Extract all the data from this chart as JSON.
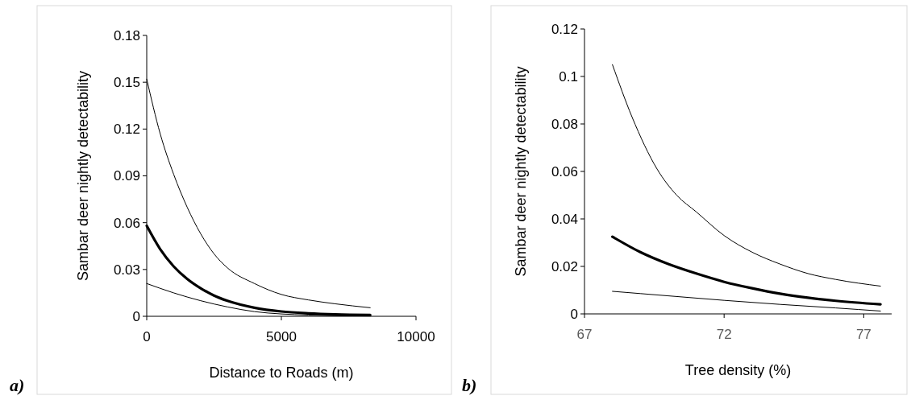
{
  "chart_data": [
    {
      "type": "line",
      "xlabel": "Distance to Roads (m)",
      "ylabel": "Sambar deer nightly detectability",
      "xlim": [
        0,
        10000
      ],
      "xticks": [
        0,
        5000,
        10000
      ],
      "ylim": [
        0,
        0.18
      ],
      "yticks": [
        0,
        0.03,
        0.06,
        0.09,
        0.12,
        0.15,
        0.18
      ],
      "annotations": [
        "a)"
      ],
      "series": [
        {
          "color": "#000000",
          "x": [
            0,
            500,
            1000,
            1500,
            2000,
            2500,
            3000,
            4000,
            5000,
            6000,
            7000,
            8300
          ],
          "values": [
            0.152,
            0.117,
            0.091,
            0.07,
            0.053,
            0.04,
            0.031,
            0.021,
            0.014,
            0.0105,
            0.008,
            0.0055
          ]
        },
        {
          "color": "#000000",
          "x": [
            0,
            500,
            1000,
            1500,
            2000,
            2500,
            3000,
            4000,
            5000,
            6000,
            7000,
            8300
          ],
          "values": [
            0.058,
            0.043,
            0.032,
            0.024,
            0.018,
            0.0133,
            0.0099,
            0.0055,
            0.0031,
            0.0019,
            0.0012,
            0.0008
          ]
        },
        {
          "color": "#000000",
          "x": [
            0,
            1000,
            2000,
            3000,
            4000,
            5000,
            6000,
            7000,
            8300
          ],
          "values": [
            0.021,
            0.015,
            0.01,
            0.006,
            0.003,
            0.0015,
            0.0008,
            0.0004,
            0.0002
          ]
        }
      ]
    },
    {
      "type": "line",
      "xlabel": "Tree density (%)",
      "ylabel": "Sambar deer nightly detectability",
      "xlim": [
        67,
        78
      ],
      "xticks": [
        67,
        72,
        77
      ],
      "ylim": [
        0,
        0.12
      ],
      "yticks": [
        0,
        0.02,
        0.04,
        0.06,
        0.08,
        {
          "value": 0.1,
          "label": "0.1"
        },
        0.12
      ],
      "annotations": [
        "b)"
      ],
      "series": [
        {
          "color": "#000000",
          "x": [
            68,
            68.7,
            69.6,
            70.3,
            71,
            72,
            73,
            74,
            75,
            76,
            77.6
          ],
          "values": [
            0.105,
            0.083,
            0.061,
            0.05,
            0.043,
            0.033,
            0.026,
            0.021,
            0.017,
            0.0145,
            0.0117
          ]
        },
        {
          "color": "#000000",
          "x": [
            68,
            69,
            70,
            71,
            72,
            73,
            74,
            75,
            76,
            77.6
          ],
          "values": [
            0.0325,
            0.026,
            0.021,
            0.017,
            0.0135,
            0.0108,
            0.0085,
            0.0068,
            0.0055,
            0.004
          ]
        },
        {
          "color": "#000000",
          "x": [
            68,
            70,
            72,
            74,
            76,
            77.6
          ],
          "values": [
            0.0095,
            0.0076,
            0.0057,
            0.004,
            0.0025,
            0.0012
          ]
        }
      ]
    }
  ]
}
